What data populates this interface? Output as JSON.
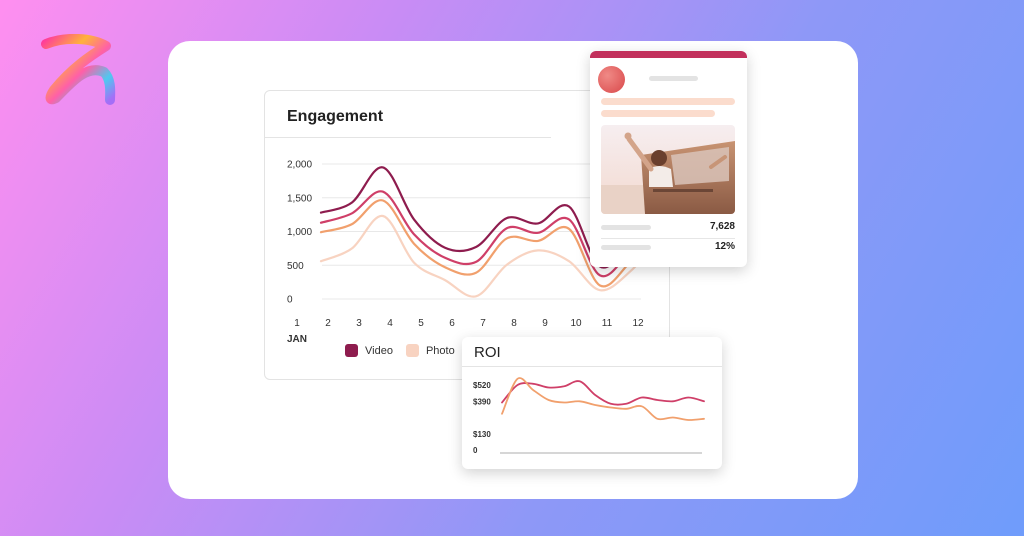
{
  "colors": {
    "video": "#8e1c4e",
    "mid": "#cf3f68",
    "orange": "#f1a06d",
    "photo": "#f8d3c1",
    "roi_primary": "#cf3f68",
    "roi_secondary": "#f1a06d"
  },
  "logo": {
    "icon": "brand-loop-icon"
  },
  "post_card": {
    "stats": [
      "7,628",
      "12%"
    ]
  },
  "chart_data": [
    {
      "type": "line",
      "title": "Engagement",
      "x": [
        1,
        2,
        3,
        4,
        5,
        6,
        7,
        8,
        9,
        10,
        11,
        12
      ],
      "x_labels": [
        "1",
        "2",
        "3",
        "4",
        "5",
        "6",
        "7",
        "8",
        "9",
        "10",
        "11",
        "12"
      ],
      "x_sub_label": "JAN",
      "y_ticks": [
        0,
        500,
        1000,
        1500,
        2000
      ],
      "y_tick_labels": [
        "0",
        "500",
        "1,000",
        "1,500",
        "2,000"
      ],
      "ylim": [
        0,
        2000
      ],
      "grid": true,
      "legend": [
        "Video",
        "Photo"
      ],
      "legend_position": "bottom",
      "series": [
        {
          "name": "Video",
          "color": "#8e1c4e",
          "values": [
            1280,
            1430,
            1950,
            1180,
            760,
            770,
            1200,
            1120,
            1370,
            480,
            850,
            1350
          ]
        },
        {
          "color": "#cf3f68",
          "values": [
            1130,
            1270,
            1590,
            960,
            610,
            550,
            1050,
            980,
            1180,
            350,
            720,
            1200
          ]
        },
        {
          "color": "#f1a06d",
          "values": [
            990,
            1110,
            1460,
            820,
            470,
            390,
            900,
            860,
            1040,
            200,
            560,
            1050
          ]
        },
        {
          "name": "Photo",
          "color": "#f8d3c1",
          "values": [
            560,
            750,
            1230,
            540,
            280,
            40,
            510,
            720,
            560,
            130,
            420,
            950
          ]
        }
      ]
    },
    {
      "type": "line",
      "title": "ROI",
      "y_ticks": [
        0,
        130,
        390,
        520
      ],
      "y_tick_labels": [
        "0",
        "$130",
        "$390",
        "$520"
      ],
      "ylim": [
        0,
        520
      ],
      "grid": false,
      "series": [
        {
          "color": "#cf3f68",
          "values": [
            380,
            520,
            530,
            500,
            510,
            550,
            440,
            370,
            370,
            420,
            400,
            390,
            420,
            390
          ]
        },
        {
          "color": "#f1a06d",
          "values": [
            290,
            570,
            480,
            400,
            380,
            390,
            360,
            340,
            330,
            350,
            250,
            260,
            240,
            250
          ]
        }
      ]
    }
  ]
}
